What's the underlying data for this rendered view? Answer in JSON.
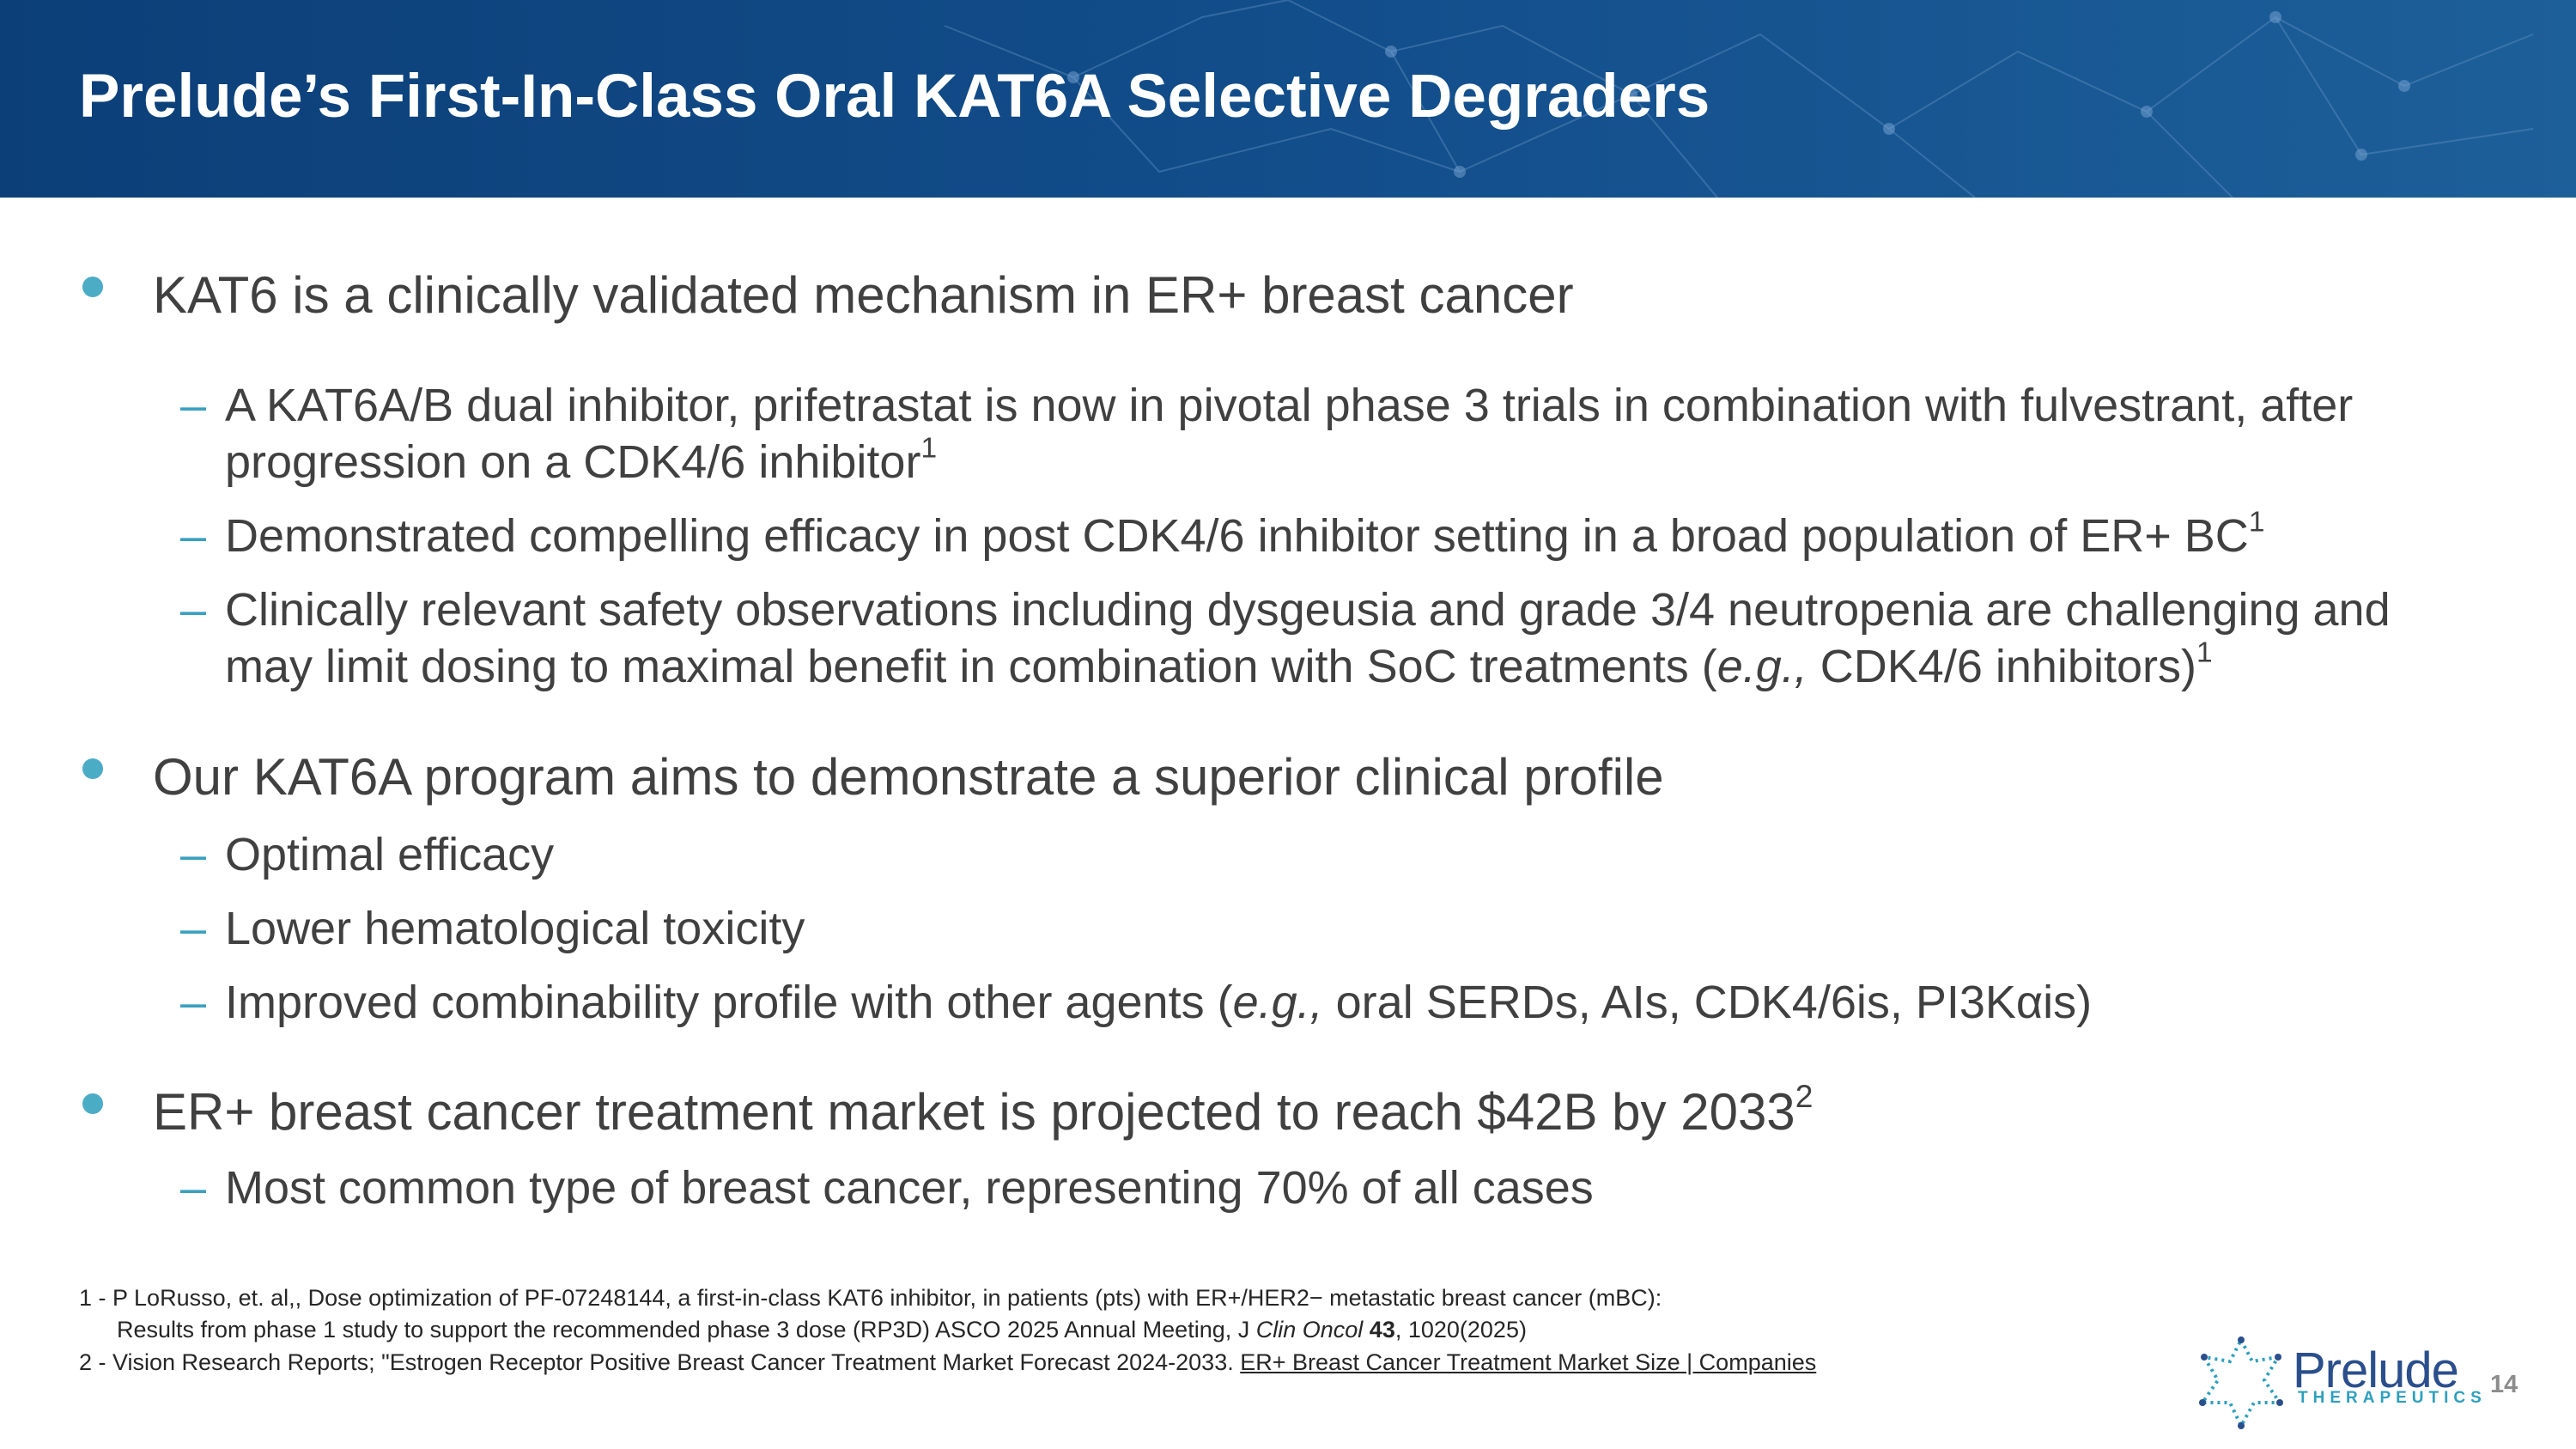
{
  "header": {
    "title": "Prelude’s First-In-Class Oral KAT6A Selective Degraders"
  },
  "bullets": [
    {
      "text": [
        {
          "t": "KAT6 is a clinically validated mechanism in ER+ breast cancer"
        }
      ],
      "items": [
        [
          {
            "t": "A KAT6A/B dual inhibitor, prifetrastat is now in pivotal phase 3 trials in combination with fulvestrant, after progression on a CDK4/6 inhibitor"
          },
          {
            "sup": "1"
          }
        ],
        [
          {
            "t": "Demonstrated compelling efficacy in post CDK4/6 inhibitor setting in a broad population of ER+ BC"
          },
          {
            "sup": "1"
          }
        ],
        [
          {
            "t": "Clinically relevant safety observations including dysgeusia and grade 3/4 neutropenia are challenging and may limit dosing to maximal benefit in combination with SoC treatments ("
          },
          {
            "i": "e.g.,"
          },
          {
            "t": " CDK4/6 inhibitors)"
          },
          {
            "sup": "1"
          }
        ]
      ]
    },
    {
      "text": [
        {
          "t": "Our KAT6A program aims to demonstrate a superior clinical profile"
        }
      ],
      "items": [
        [
          {
            "t": "Optimal efficacy"
          }
        ],
        [
          {
            "t": "Lower hematological toxicity"
          }
        ],
        [
          {
            "t": "Improved combinability profile with other agents ("
          },
          {
            "i": "e.g.,"
          },
          {
            "t": " oral SERDs, AIs, CDK4/6is, PI3Kαis)"
          }
        ]
      ]
    },
    {
      "text": [
        {
          "t": "ER+ breast cancer treatment market is projected to reach $42B by 2033"
        },
        {
          "sup": "2"
        }
      ],
      "items": [
        [
          {
            "t": "Most common type of breast cancer, representing 70% of all cases"
          }
        ]
      ]
    }
  ],
  "footnotes": [
    [
      {
        "t": "1 - P LoRusso, et. al,, Dose optimization of PF-07248144, a first-in-class KAT6 inhibitor, in patients (pts) with ER+/HER2− metastatic breast cancer (mBC):"
      }
    ],
    [
      {
        "t": "Results from phase 1 study to support the recommended phase 3 dose (RP3D) ASCO 2025 Annual Meeting, J "
      },
      {
        "i": "Clin Oncol"
      },
      {
        "t": " "
      },
      {
        "b": "43"
      },
      {
        "t": ", 1020(2025)"
      }
    ],
    [
      {
        "t": "2 - Vision Research Reports; \"Estrogen Receptor Positive Breast Cancer Treatment Market Forecast 2024-2033. "
      },
      {
        "u": "ER+ Breast Cancer Treatment Market Size | Companies"
      }
    ]
  ],
  "logo": {
    "name": "Prelude",
    "tagline": "THERAPEUTICS"
  },
  "page_number": "14"
}
